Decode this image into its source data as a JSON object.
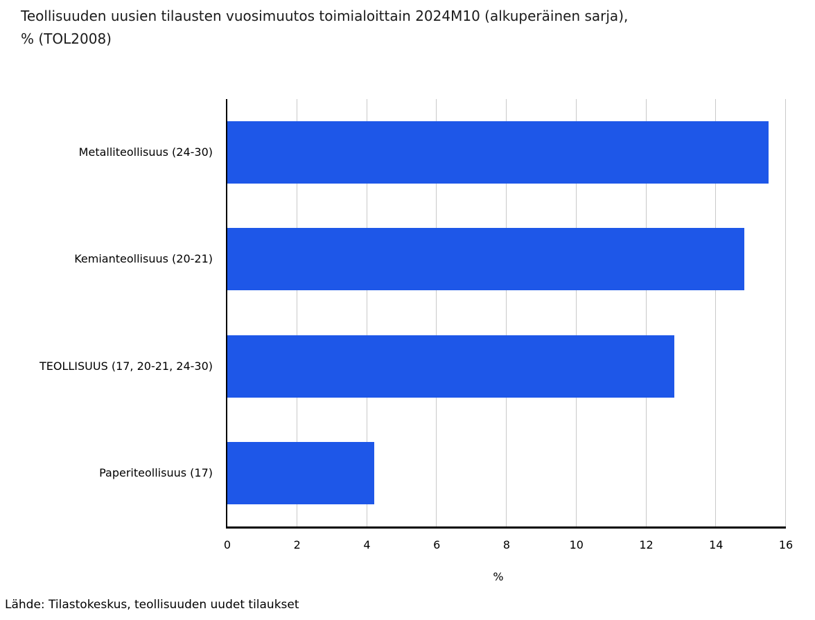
{
  "title_lines": [
    "Teollisuuden uusien tilausten vuosimuutos toimialoittain 2024M10 (alkuperäinen sarja),",
    "% (TOL2008)"
  ],
  "source": "Lähde: Tilastokeskus, teollisuuden uudet tilaukset",
  "chart_data": {
    "type": "bar",
    "orientation": "horizontal",
    "title": "Teollisuuden uusien tilausten vuosimuutos toimialoittain 2024M10 (alkuperäinen sarja), % (TOL2008)",
    "categories": [
      "Metalliteollisuus (24-30)",
      "Kemianteollisuus (20-21)",
      "TEOLLISUUS (17, 20-21, 24-30)",
      "Paperiteollisuus (17)"
    ],
    "values": [
      15.5,
      14.8,
      12.8,
      4.2
    ],
    "xlabel": "%",
    "xlim": [
      0,
      16
    ],
    "xticks": [
      0,
      2,
      4,
      6,
      8,
      10,
      12,
      14,
      16
    ],
    "grid": true,
    "legend": false,
    "bar_color": "#1e57e8",
    "gridline_color": "#c9c9c9",
    "axis_color": "#000000"
  }
}
